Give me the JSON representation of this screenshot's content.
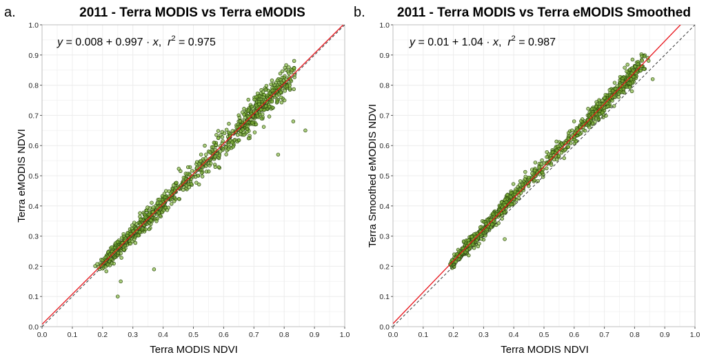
{
  "chart_data": [
    {
      "type": "scatter",
      "panel_label": "a.",
      "title": "2011 - Terra MODIS vs Terra eMODIS",
      "xlabel": "Terra MODIS NDVI",
      "ylabel": "Terra eMODIS NDVI",
      "xlim": [
        0.0,
        1.0
      ],
      "ylim": [
        0.0,
        1.0
      ],
      "xticks": [
        "0.0",
        "0.1",
        "0.2",
        "0.3",
        "0.4",
        "0.5",
        "0.6",
        "0.7",
        "0.8",
        "0.9",
        "1.0"
      ],
      "yticks": [
        "0.0",
        "0.1",
        "0.2",
        "0.3",
        "0.4",
        "0.5",
        "0.6",
        "0.7",
        "0.8",
        "0.9",
        "1.0"
      ],
      "grid": true,
      "equation": {
        "y": "y",
        "eq": " = 0.008 + 0.997 · ",
        "x": "x",
        "sep": ",  ",
        "r": "r",
        "r_exp": "2",
        "r_val": " = 0.975"
      },
      "fit": {
        "intercept": 0.008,
        "slope": 0.997
      },
      "reference": "1:1 line (dashed)",
      "n_points": 950,
      "x_range": [
        0.17,
        0.86
      ],
      "notable_outliers": [
        [
          0.25,
          0.1
        ],
        [
          0.26,
          0.15
        ],
        [
          0.37,
          0.19
        ],
        [
          0.78,
          0.57
        ],
        [
          0.87,
          0.65
        ],
        [
          0.83,
          0.68
        ]
      ]
    },
    {
      "type": "scatter",
      "panel_label": "b.",
      "title": "2011 - Terra MODIS vs Terra eMODIS Smoothed",
      "xlabel": "Terra MODIS NDVI",
      "ylabel": "Terra Smoothed eMODIS NDVI",
      "xlim": [
        0.0,
        1.0
      ],
      "ylim": [
        0.0,
        1.0
      ],
      "xticks": [
        "0.0",
        "0.1",
        "0.2",
        "0.3",
        "0.4",
        "0.5",
        "0.6",
        "0.7",
        "0.8",
        "0.9",
        "1.0"
      ],
      "yticks": [
        "0.0",
        "0.1",
        "0.2",
        "0.3",
        "0.4",
        "0.5",
        "0.6",
        "0.7",
        "0.8",
        "0.9",
        "1.0"
      ],
      "grid": true,
      "equation": {
        "y": "y",
        "eq": " = 0.01 + 1.04 · ",
        "x": "x",
        "sep": ",  ",
        "r": "r",
        "r_exp": "2",
        "r_val": " = 0.987"
      },
      "fit": {
        "intercept": 0.01,
        "slope": 1.04
      },
      "reference": "1:1 line (dashed)",
      "n_points": 950,
      "x_range": [
        0.17,
        0.86
      ],
      "notable_outliers": [
        [
          0.37,
          0.29
        ],
        [
          0.86,
          0.82
        ]
      ]
    }
  ],
  "colors": {
    "point_fill": "#7fb33a",
    "point_stroke": "#2c4a0c",
    "fit_line": "#e8141b",
    "identity_line": "#333333",
    "grid": "#ececec"
  }
}
